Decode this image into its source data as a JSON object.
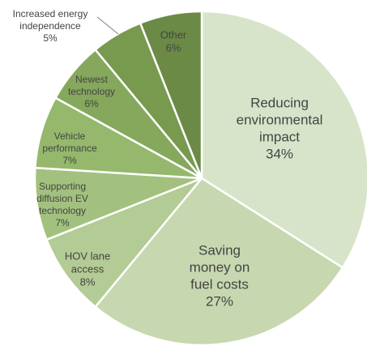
{
  "chart_data": {
    "type": "pie",
    "start_angle_deg": 0,
    "direction": "clockwise",
    "slices": [
      {
        "label": [
          "Reducing",
          "environmental",
          "impact"
        ],
        "value_text": "34%",
        "value": 34,
        "color": "#d7e4c9"
      },
      {
        "label": [
          "Saving",
          "money on",
          "fuel costs"
        ],
        "value_text": "27%",
        "value": 27,
        "color": "#c7d8b0"
      },
      {
        "label": [
          "HOV lane",
          "access"
        ],
        "value_text": "8%",
        "value": 8,
        "color": "#b3cb94"
      },
      {
        "label": [
          "Supporting",
          "diffusion EV",
          "technology"
        ],
        "value_text": "7%",
        "value": 7,
        "color": "#a3c17e"
      },
      {
        "label": [
          "Vehicle",
          "performance"
        ],
        "value_text": "7%",
        "value": 7,
        "color": "#95b86c"
      },
      {
        "label": [
          "Newest",
          "technology"
        ],
        "value_text": "6%",
        "value": 6,
        "color": "#85a85c"
      },
      {
        "label": [
          "Increased energy",
          "independence"
        ],
        "value_text": "5%",
        "value": 5,
        "color": "#779a4e"
      },
      {
        "label": [
          "Other"
        ],
        "value_text": "6%",
        "value": 6,
        "color": "#6b8a45"
      }
    ]
  }
}
